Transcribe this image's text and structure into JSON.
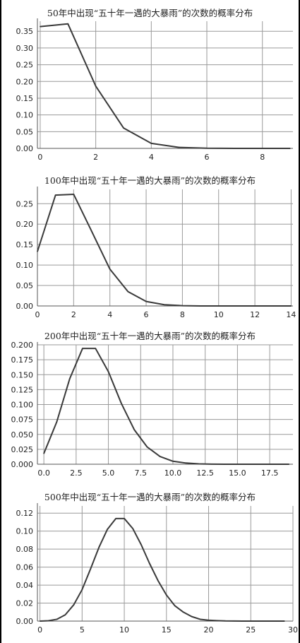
{
  "chart_data": [
    {
      "type": "line",
      "title": "50年中出现“五十年一遇的大暴雨”的次数的概率分布",
      "xlabel": "",
      "ylabel": "",
      "xlim": [
        -0.1,
        9.1
      ],
      "ylim": [
        0,
        0.38
      ],
      "xticks": [
        0,
        2,
        4,
        6,
        8
      ],
      "xtick_labels": [
        "0",
        "2",
        "4",
        "6",
        "8"
      ],
      "yticks": [
        0,
        0.05,
        0.1,
        0.15,
        0.2,
        0.25,
        0.3,
        0.35
      ],
      "ytick_labels": [
        "0.00",
        "0.05",
        "0.10",
        "0.15",
        "0.20",
        "0.25",
        "0.30",
        "0.35"
      ],
      "grid": true,
      "x": [
        0,
        1,
        2,
        3,
        4,
        5,
        6,
        7,
        8,
        9
      ],
      "y": [
        0.364,
        0.372,
        0.186,
        0.061,
        0.015,
        0.003,
        0.0004,
        0.0001,
        0.0,
        0.0
      ]
    },
    {
      "type": "line",
      "title": "100年中出现“五十年一遇的大暴雨”的次数的概率分布",
      "xlabel": "",
      "ylabel": "",
      "xlim": [
        0,
        14.1
      ],
      "ylim": [
        0,
        0.285
      ],
      "xticks": [
        0,
        2,
        4,
        6,
        8,
        10,
        12,
        14
      ],
      "xtick_labels": [
        "0",
        "2",
        "4",
        "6",
        "8",
        "10",
        "12",
        "14"
      ],
      "yticks": [
        0,
        0.05,
        0.1,
        0.15,
        0.2,
        0.25
      ],
      "ytick_labels": [
        "0.00",
        "0.05",
        "0.10",
        "0.15",
        "0.20",
        "0.25"
      ],
      "grid": true,
      "x": [
        0,
        1,
        2,
        3,
        4,
        5,
        6,
        7,
        8,
        9,
        10,
        11,
        12,
        13,
        14
      ],
      "y": [
        0.133,
        0.271,
        0.273,
        0.182,
        0.09,
        0.035,
        0.011,
        0.003,
        0.0007,
        0.0001,
        0.0,
        0.0,
        0.0,
        0.0,
        0.0
      ]
    },
    {
      "type": "line",
      "title": "200年中出现“五十年一遇的大暴雨”的次数的概率分布",
      "xlabel": "",
      "ylabel": "",
      "xlim": [
        -0.5,
        19.3
      ],
      "ylim": [
        0,
        0.2
      ],
      "xticks": [
        0,
        2.5,
        5,
        7.5,
        10,
        12.5,
        15,
        17.5
      ],
      "xtick_labels": [
        "0.0",
        "2.5",
        "5.0",
        "7.5",
        "10.0",
        "12.5",
        "15.0",
        "17.5"
      ],
      "yticks": [
        0,
        0.025,
        0.05,
        0.075,
        0.1,
        0.125,
        0.15,
        0.175,
        0.2
      ],
      "ytick_labels": [
        "0.000",
        "0.025",
        "0.050",
        "0.075",
        "0.100",
        "0.125",
        "0.150",
        "0.175",
        "0.200"
      ],
      "grid": true,
      "x": [
        0,
        1,
        2,
        3,
        4,
        5,
        6,
        7,
        8,
        9,
        10,
        11,
        12,
        13,
        14,
        15,
        16,
        17,
        18,
        19
      ],
      "y": [
        0.018,
        0.071,
        0.143,
        0.194,
        0.194,
        0.155,
        0.102,
        0.058,
        0.029,
        0.013,
        0.005,
        0.002,
        0.0006,
        0.0002,
        0.0,
        0.0,
        0.0,
        0.0,
        0.0,
        0.0
      ]
    },
    {
      "type": "line",
      "title": "500年中出现“五十年一遇的大暴雨”的次数的概率分布",
      "xlabel": "",
      "ylabel": "",
      "xlim": [
        -0.3,
        30
      ],
      "ylim": [
        0,
        0.128
      ],
      "xticks": [
        0,
        5,
        10,
        15,
        20,
        25,
        30
      ],
      "xtick_labels": [
        "0",
        "5",
        "10",
        "15",
        "20",
        "25",
        "30"
      ],
      "yticks": [
        0,
        0.02,
        0.04,
        0.06,
        0.08,
        0.1,
        0.12
      ],
      "ytick_labels": [
        "0.00",
        "0.02",
        "0.04",
        "0.06",
        "0.08",
        "0.10",
        "0.12"
      ],
      "grid": true,
      "x": [
        0,
        1,
        2,
        3,
        4,
        5,
        6,
        7,
        8,
        9,
        10,
        11,
        12,
        13,
        14,
        15,
        16,
        17,
        18,
        19,
        20,
        21,
        22,
        23,
        24,
        25,
        26,
        27,
        28,
        29
      ],
      "y": [
        0.0,
        0.0004,
        0.002,
        0.007,
        0.018,
        0.035,
        0.058,
        0.082,
        0.102,
        0.114,
        0.114,
        0.103,
        0.085,
        0.064,
        0.045,
        0.029,
        0.017,
        0.01,
        0.005,
        0.002,
        0.001,
        0.0005,
        0.0002,
        0.0001,
        0.0,
        0.0,
        0.0,
        0.0,
        0.0,
        0.0
      ]
    }
  ]
}
